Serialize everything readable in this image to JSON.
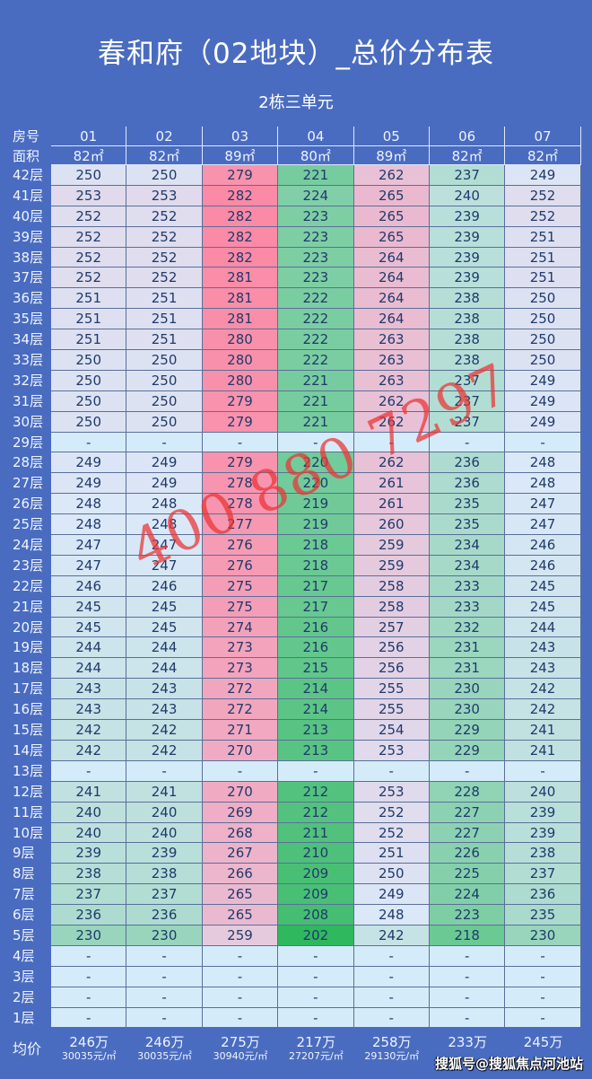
{
  "title": "春和府（02地块）_总价分布表",
  "subtitle": "2栋三单元",
  "header": {
    "room_label": "房号",
    "area_label": "面积",
    "rooms": [
      "01",
      "02",
      "03",
      "04",
      "05",
      "06",
      "07"
    ],
    "areas": [
      "82㎡",
      "82㎡",
      "89㎡",
      "80㎡",
      "89㎡",
      "82㎡",
      "82㎡"
    ]
  },
  "floors": [
    {
      "floor": "42层",
      "values": [
        "250",
        "250",
        "279",
        "221",
        "262",
        "237",
        "249"
      ]
    },
    {
      "floor": "41层",
      "values": [
        "253",
        "253",
        "282",
        "224",
        "265",
        "240",
        "252"
      ]
    },
    {
      "floor": "40层",
      "values": [
        "252",
        "252",
        "282",
        "223",
        "265",
        "239",
        "252"
      ]
    },
    {
      "floor": "39层",
      "values": [
        "252",
        "252",
        "282",
        "223",
        "265",
        "239",
        "251"
      ]
    },
    {
      "floor": "38层",
      "values": [
        "252",
        "252",
        "282",
        "223",
        "264",
        "239",
        "251"
      ]
    },
    {
      "floor": "37层",
      "values": [
        "252",
        "252",
        "281",
        "223",
        "264",
        "239",
        "251"
      ]
    },
    {
      "floor": "36层",
      "values": [
        "251",
        "251",
        "281",
        "222",
        "264",
        "238",
        "250"
      ]
    },
    {
      "floor": "35层",
      "values": [
        "251",
        "251",
        "281",
        "222",
        "264",
        "238",
        "250"
      ]
    },
    {
      "floor": "34层",
      "values": [
        "251",
        "251",
        "280",
        "222",
        "263",
        "238",
        "250"
      ]
    },
    {
      "floor": "33层",
      "values": [
        "250",
        "250",
        "280",
        "222",
        "263",
        "238",
        "250"
      ]
    },
    {
      "floor": "32层",
      "values": [
        "250",
        "250",
        "280",
        "221",
        "263",
        "237",
        "249"
      ]
    },
    {
      "floor": "31层",
      "values": [
        "250",
        "250",
        "279",
        "221",
        "262",
        "237",
        "249"
      ]
    },
    {
      "floor": "30层",
      "values": [
        "250",
        "250",
        "279",
        "221",
        "262",
        "237",
        "249"
      ]
    },
    {
      "floor": "29层",
      "values": [
        "-",
        "-",
        "-",
        "-",
        "-",
        "-",
        "-"
      ]
    },
    {
      "floor": "28层",
      "values": [
        "249",
        "249",
        "279",
        "220",
        "262",
        "236",
        "248"
      ]
    },
    {
      "floor": "27层",
      "values": [
        "249",
        "249",
        "278",
        "220",
        "261",
        "236",
        "248"
      ]
    },
    {
      "floor": "26层",
      "values": [
        "248",
        "248",
        "278",
        "219",
        "261",
        "235",
        "247"
      ]
    },
    {
      "floor": "25层",
      "values": [
        "248",
        "248",
        "277",
        "219",
        "260",
        "235",
        "247"
      ]
    },
    {
      "floor": "24层",
      "values": [
        "247",
        "247",
        "276",
        "218",
        "259",
        "234",
        "246"
      ]
    },
    {
      "floor": "23层",
      "values": [
        "247",
        "247",
        "276",
        "218",
        "259",
        "234",
        "246"
      ]
    },
    {
      "floor": "22层",
      "values": [
        "246",
        "246",
        "275",
        "217",
        "258",
        "233",
        "245"
      ]
    },
    {
      "floor": "21层",
      "values": [
        "245",
        "245",
        "275",
        "217",
        "258",
        "233",
        "245"
      ]
    },
    {
      "floor": "20层",
      "values": [
        "245",
        "245",
        "274",
        "216",
        "257",
        "232",
        "244"
      ]
    },
    {
      "floor": "19层",
      "values": [
        "244",
        "244",
        "273",
        "216",
        "256",
        "231",
        "243"
      ]
    },
    {
      "floor": "18层",
      "values": [
        "244",
        "244",
        "273",
        "215",
        "256",
        "231",
        "243"
      ]
    },
    {
      "floor": "17层",
      "values": [
        "243",
        "243",
        "272",
        "214",
        "255",
        "230",
        "242"
      ]
    },
    {
      "floor": "16层",
      "values": [
        "243",
        "243",
        "272",
        "214",
        "255",
        "230",
        "242"
      ]
    },
    {
      "floor": "15层",
      "values": [
        "242",
        "242",
        "271",
        "213",
        "254",
        "229",
        "241"
      ]
    },
    {
      "floor": "14层",
      "values": [
        "242",
        "242",
        "270",
        "213",
        "253",
        "229",
        "241"
      ]
    },
    {
      "floor": "13层",
      "values": [
        "-",
        "-",
        "-",
        "-",
        "-",
        "-",
        "-"
      ]
    },
    {
      "floor": "12层",
      "values": [
        "241",
        "241",
        "270",
        "212",
        "253",
        "228",
        "240"
      ]
    },
    {
      "floor": "11层",
      "values": [
        "240",
        "240",
        "269",
        "212",
        "252",
        "227",
        "239"
      ]
    },
    {
      "floor": "10层",
      "values": [
        "240",
        "240",
        "268",
        "211",
        "252",
        "227",
        "239"
      ]
    },
    {
      "floor": "9层",
      "values": [
        "239",
        "239",
        "267",
        "210",
        "251",
        "226",
        "238"
      ]
    },
    {
      "floor": "8层",
      "values": [
        "238",
        "238",
        "266",
        "209",
        "250",
        "225",
        "237"
      ]
    },
    {
      "floor": "7层",
      "values": [
        "237",
        "237",
        "265",
        "209",
        "249",
        "224",
        "236"
      ]
    },
    {
      "floor": "6层",
      "values": [
        "236",
        "236",
        "265",
        "208",
        "248",
        "223",
        "235"
      ]
    },
    {
      "floor": "5层",
      "values": [
        "230",
        "230",
        "259",
        "202",
        "242",
        "218",
        "230"
      ]
    },
    {
      "floor": "4层",
      "values": [
        "-",
        "-",
        "-",
        "-",
        "-",
        "-",
        "-"
      ]
    },
    {
      "floor": "3层",
      "values": [
        "-",
        "-",
        "-",
        "-",
        "-",
        "-",
        "-"
      ]
    },
    {
      "floor": "2层",
      "values": [
        "-",
        "-",
        "-",
        "-",
        "-",
        "-",
        "-"
      ]
    },
    {
      "floor": "1层",
      "values": [
        "-",
        "-",
        "-",
        "-",
        "-",
        "-",
        "-"
      ]
    }
  ],
  "average": {
    "label": "均价",
    "totals": [
      "246万",
      "246万",
      "275万",
      "217万",
      "258万",
      "233万",
      "245万"
    ],
    "unit_prices": [
      "30035元/㎡",
      "30035元/㎡",
      "30940元/㎡",
      "27207元/㎡",
      "29130元/㎡",
      "",
      ""
    ]
  },
  "watermark": "400 880 7297",
  "source": "搜狐号@搜狐焦点河池站",
  "colors": {
    "background": "#4a6cc0",
    "low": "#2fb85e",
    "mid": "#dbe8f8",
    "high": "#fb8aa6",
    "empty": "#d4ecfa"
  }
}
